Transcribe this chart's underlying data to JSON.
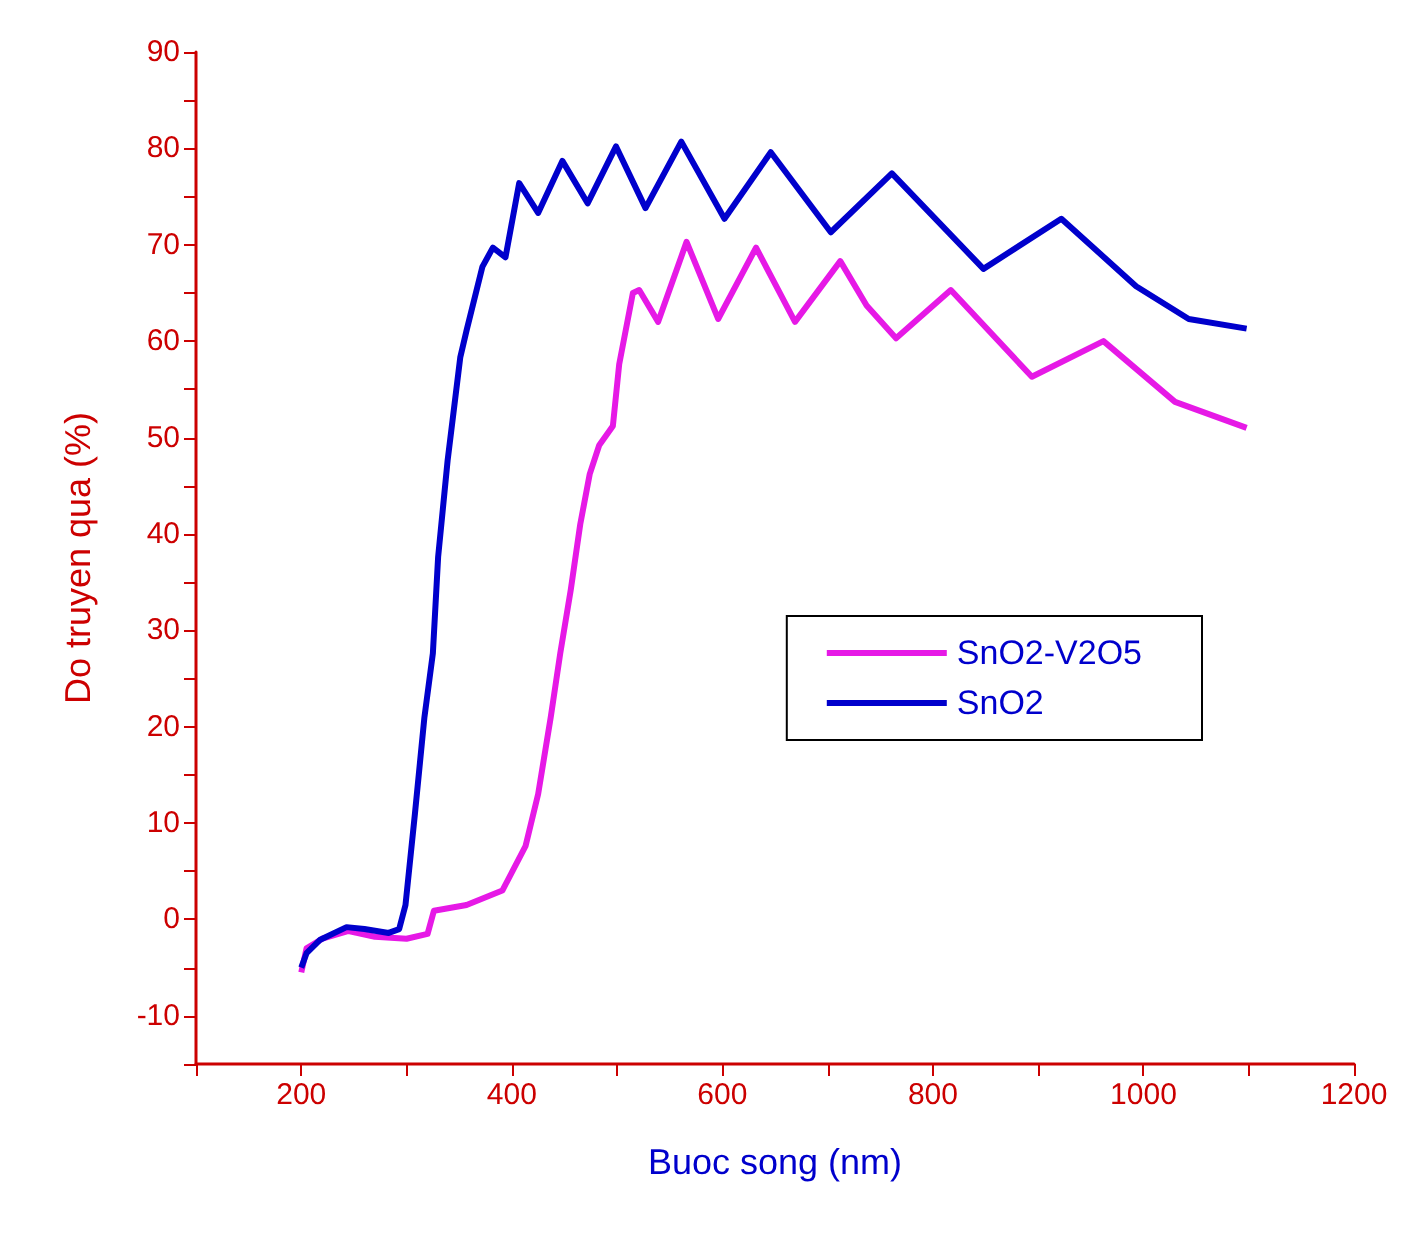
{
  "chart_data": {
    "type": "line",
    "xlabel": "Buoc song (nm)",
    "ylabel": "Do truyen qua (%)",
    "xlim": [
      100,
      1200
    ],
    "ylim": [
      -15,
      90
    ],
    "xticks": [
      {
        "value": 100,
        "label": null
      },
      200,
      {
        "value": 300,
        "label": null
      },
      400,
      {
        "value": 500,
        "label": null
      },
      600,
      {
        "value": 700,
        "label": null
      },
      800,
      {
        "value": 900,
        "label": null
      },
      1000,
      {
        "value": 1100,
        "label": null
      },
      1200
    ],
    "yticks": [
      {
        "value": -15,
        "label": null
      },
      -10,
      {
        "value": -5,
        "label": null
      },
      0,
      {
        "value": 5,
        "label": null
      },
      10,
      {
        "value": 15,
        "label": null
      },
      20,
      {
        "value": 25,
        "label": null
      },
      30,
      {
        "value": 35,
        "label": null
      },
      40,
      {
        "value": 45,
        "label": null
      },
      50,
      {
        "value": 55,
        "label": null
      },
      60,
      {
        "value": 65,
        "label": null
      },
      70,
      {
        "value": 75,
        "label": null
      },
      80,
      {
        "value": 85,
        "label": null
      },
      90
    ],
    "grid": false,
    "legend": "right",
    "marker": "none",
    "line_style": "solid",
    "series": [
      {
        "name": "SnO2-V2O5",
        "color": "#e619e6",
        "x": [
          200,
          205,
          220,
          245,
          270,
          300,
          320,
          326,
          357,
          391,
          413,
          425,
          437,
          446,
          456,
          465,
          474,
          483,
          496,
          502,
          515,
          521,
          539,
          566,
          596,
          632,
          669,
          712,
          737,
          765,
          817,
          894,
          962,
          1030,
          1098
        ],
        "values": [
          -5.5,
          -3,
          -2,
          -1.2,
          -1.8,
          -2,
          -1.5,
          0.9,
          1.5,
          3,
          7.6,
          13,
          21,
          27.6,
          34.2,
          41,
          46.2,
          49.2,
          51.2,
          57.6,
          65,
          65.3,
          62,
          70.3,
          62.3,
          69.7,
          62,
          68.3,
          63.7,
          60.3,
          65.3,
          56.3,
          60,
          53.7,
          51
        ]
      },
      {
        "name": "SnO2",
        "color": "#0000cc",
        "x": [
          200,
          205,
          218,
          243,
          260,
          283,
          293,
          299,
          308,
          317,
          325,
          330,
          339,
          351,
          357,
          372,
          382,
          394,
          407,
          425,
          448,
          472,
          499,
          527,
          561,
          602,
          646,
          703,
          761,
          848,
          922,
          993,
          1043,
          1098
        ],
        "values": [
          -5,
          -3.5,
          -2.1,
          -0.8,
          -1,
          -1.4,
          -1,
          1.5,
          11,
          21,
          27.6,
          37.6,
          47.6,
          58.3,
          61.1,
          67.7,
          69.7,
          68.7,
          76.4,
          73.3,
          78.7,
          74.3,
          80.2,
          73.8,
          80.7,
          72.7,
          79.6,
          71.3,
          77.4,
          67.5,
          72.7,
          65.7,
          62.3,
          61.3
        ]
      }
    ]
  }
}
